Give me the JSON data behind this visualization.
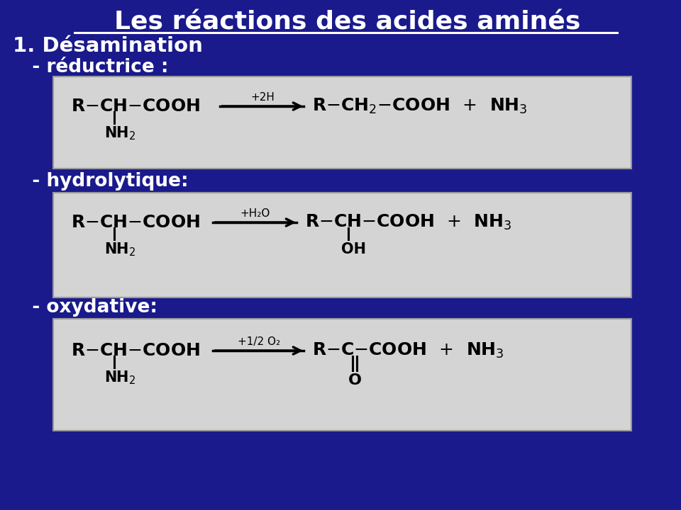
{
  "bg_color": "#1a1a8c",
  "title": "Les réactions des acides aminés",
  "title_color": "#ffffff",
  "title_fontsize": 26,
  "section1": "1. Désamination",
  "section1_color": "#ffffff",
  "section1_fontsize": 21,
  "sub1": "   - réductrice :",
  "sub2": "   - hydrolytique:",
  "sub3": "   - oxydative:",
  "sub_color": "#ffffff",
  "sub_fontsize": 19,
  "box_facecolor": "#d4d4d4",
  "box_edgecolor": "#999999",
  "reaction1_label": "+2H",
  "reaction2_label": "+H₂O",
  "reaction3_label": "+1/2 O₂"
}
